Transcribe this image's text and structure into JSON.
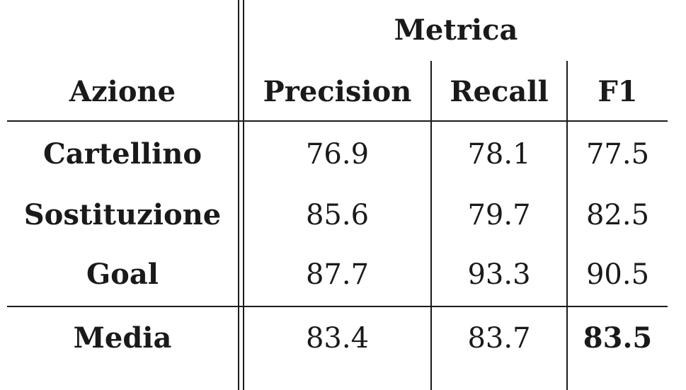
{
  "table": {
    "group_header": "Metrica",
    "row_header": "Azione",
    "columns": [
      "Precision",
      "Recall",
      "F1"
    ],
    "rows": [
      {
        "label": "Cartellino",
        "values": [
          "76.9",
          "78.1",
          "77.5"
        ]
      },
      {
        "label": "Sostituzione",
        "values": [
          "85.6",
          "79.7",
          "82.5"
        ]
      },
      {
        "label": "Goal",
        "values": [
          "87.7",
          "93.3",
          "90.5"
        ]
      }
    ],
    "footer": {
      "label": "Media",
      "values": [
        "83.4",
        "83.7",
        "83.5"
      ]
    }
  }
}
